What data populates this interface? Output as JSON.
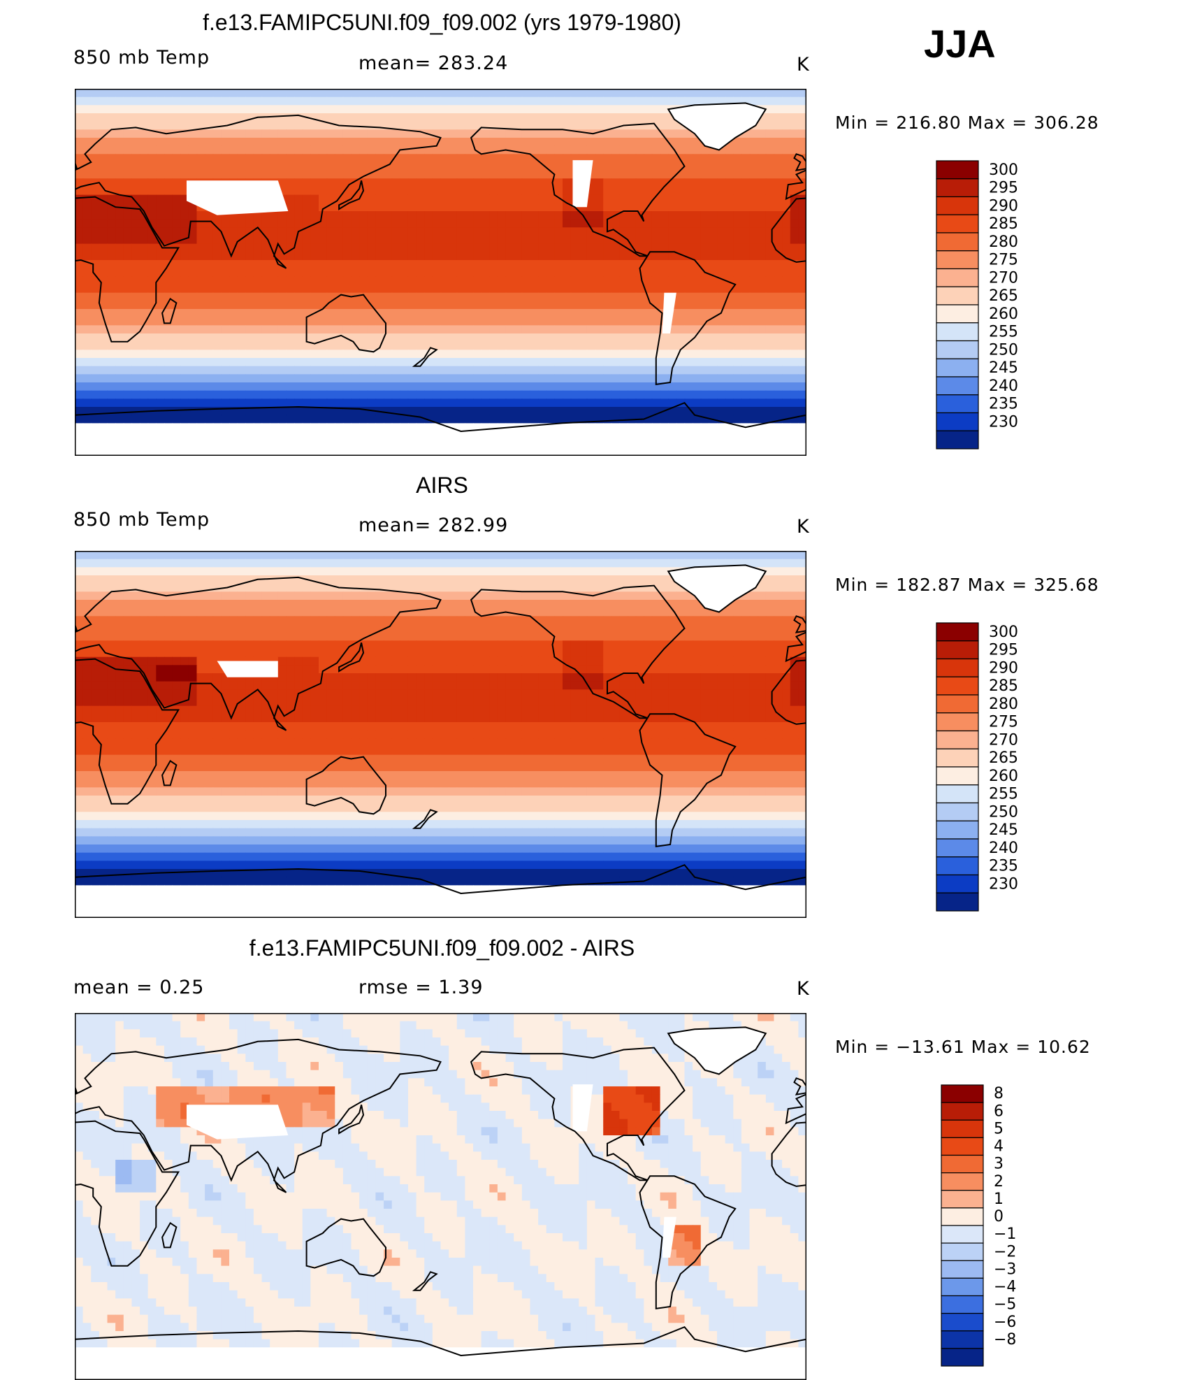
{
  "figure": {
    "season": "JJA"
  },
  "chart_data": [
    {
      "type": "heatmap",
      "title": "f.e13.FAMIPC5UNI.f09_f09.002 (yrs 1979-1980)",
      "left_label": "850 mb Temp",
      "center_label": "mean= 283.24",
      "units": "K",
      "stats": "Min = 216.80 Max = 306.28",
      "min": 216.8,
      "max": 306.28,
      "levels": [
        "300",
        "295",
        "290",
        "285",
        "280",
        "275",
        "270",
        "265",
        "260",
        "255",
        "250",
        "245",
        "240",
        "235",
        "230"
      ],
      "colors": [
        "#8b0000",
        "#b81d07",
        "#d8350b",
        "#e84a16",
        "#f06a34",
        "#f78e60",
        "#fbb190",
        "#fdd2b8",
        "#fdeee2",
        "#d4e4f8",
        "#b4ccf4",
        "#8cb0f0",
        "#5c8ae8",
        "#2a60dc",
        "#0c3cc4",
        "#062488"
      ],
      "map_profile": "model"
    },
    {
      "type": "heatmap",
      "title": "AIRS",
      "left_label": "850 mb Temp",
      "center_label": "mean= 282.99",
      "units": "K",
      "stats": "Min = 182.87 Max = 325.68",
      "min": 182.87,
      "max": 325.68,
      "levels": [
        "300",
        "295",
        "290",
        "285",
        "280",
        "275",
        "270",
        "265",
        "260",
        "255",
        "250",
        "245",
        "240",
        "235",
        "230"
      ],
      "colors": [
        "#8b0000",
        "#b81d07",
        "#d8350b",
        "#e84a16",
        "#f06a34",
        "#f78e60",
        "#fbb190",
        "#fdd2b8",
        "#fdeee2",
        "#d4e4f8",
        "#b4ccf4",
        "#8cb0f0",
        "#5c8ae8",
        "#2a60dc",
        "#0c3cc4",
        "#062488"
      ],
      "map_profile": "obs"
    },
    {
      "type": "heatmap",
      "title": "f.e13.FAMIPC5UNI.f09_f09.002 - AIRS",
      "left_label": "mean =    0.25",
      "center_label": "rmse =    1.39",
      "units": "K",
      "stats": "Min = −13.61 Max =   10.62",
      "min": -13.61,
      "max": 10.62,
      "levels": [
        "8",
        "6",
        "5",
        "4",
        "3",
        "2",
        "1",
        "0",
        "−1",
        "−2",
        "−3",
        "−4",
        "−5",
        "−6",
        "−8"
      ],
      "colors": [
        "#8b0000",
        "#b81d07",
        "#d8350b",
        "#e84a16",
        "#f06a34",
        "#f78e60",
        "#fbb190",
        "#fdeee2",
        "#dbe7f9",
        "#bcd2f6",
        "#9cbaf2",
        "#6c98ea",
        "#3c6fe0",
        "#1a4ccc",
        "#0c34a8",
        "#062488"
      ],
      "map_profile": "diff"
    }
  ]
}
